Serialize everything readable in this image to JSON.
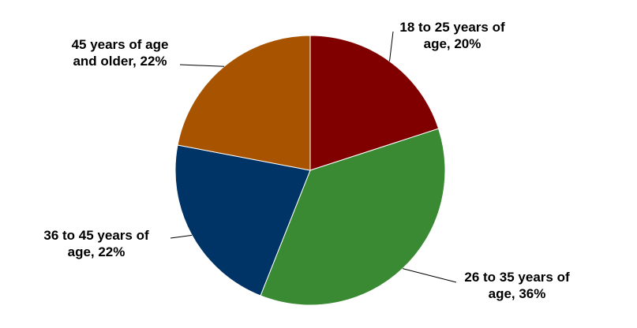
{
  "chart_data": {
    "type": "pie",
    "title": "",
    "slices": [
      {
        "label_lines": [
          "18 to 25 years of",
          "age, 20%"
        ],
        "label": "18 to 25 years of age",
        "value": 20,
        "color": "#800000"
      },
      {
        "label_lines": [
          "26 to 35 years of",
          "age, 36%"
        ],
        "label": "26 to 35 years of age",
        "value": 36,
        "color": "#3a8a33"
      },
      {
        "label_lines": [
          "36 to 45 years of",
          "age, 22%"
        ],
        "label": "36 to 45 years of age",
        "value": 22,
        "color": "#003366"
      },
      {
        "label_lines": [
          "45 years of age",
          "and older, 22%"
        ],
        "label": "45 years of age and older",
        "value": 22,
        "color": "#a85300"
      }
    ],
    "legend": "none"
  }
}
